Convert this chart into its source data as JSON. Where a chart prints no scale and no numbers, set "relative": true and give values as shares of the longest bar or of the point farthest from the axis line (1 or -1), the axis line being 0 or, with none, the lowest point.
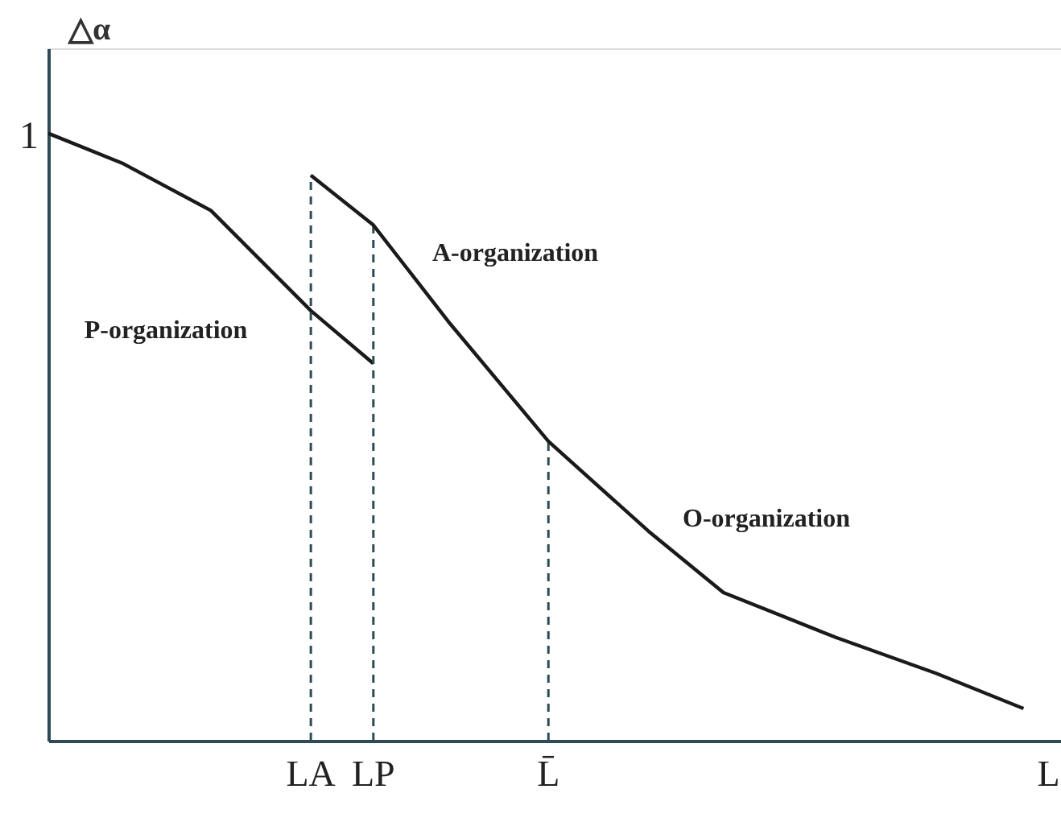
{
  "chart_data": {
    "type": "line",
    "relative": true,
    "ylabel": "△α",
    "grid": false,
    "categories": [
      null,
      null,
      null,
      null,
      null,
      null,
      null,
      null,
      null,
      null,
      null,
      null,
      null,
      null,
      null,
      null,
      null,
      null,
      null,
      null,
      null,
      "LA",
      null,
      null,
      null,
      null,
      "LP",
      null,
      null,
      null,
      null,
      null,
      null,
      null,
      null,
      null,
      null,
      null,
      null,
      null,
      "L̄",
      null,
      null,
      null,
      null,
      null,
      null,
      null,
      null,
      null,
      null,
      null,
      null,
      null,
      null,
      null,
      null,
      null,
      null,
      null,
      null,
      null,
      null,
      null,
      null,
      null,
      null,
      null,
      null,
      null,
      null,
      null,
      null,
      null,
      null,
      null,
      null,
      null,
      null,
      null,
      "L"
    ],
    "series": [
      {
        "color": "#1a1a1a",
        "line_style": "solid",
        "values": [
          1,
          null,
          null,
          null,
          null,
          null,
          0.95,
          null,
          null,
          null,
          null,
          null,
          null,
          0.873,
          null,
          null,
          null,
          null,
          null,
          null,
          null,
          0.708,
          null,
          null,
          null,
          null,
          0.621,
          null,
          null,
          null,
          null,
          null,
          null,
          null,
          null,
          null,
          null,
          null,
          null,
          null,
          null,
          null,
          null,
          null,
          null,
          null,
          null,
          null,
          null,
          null,
          null,
          null,
          null,
          null,
          null,
          null,
          null,
          null,
          null,
          null,
          null,
          null,
          null,
          null,
          null,
          null,
          null,
          null,
          null,
          null,
          null,
          null,
          null,
          null,
          null,
          null,
          null,
          null,
          null,
          null,
          null
        ]
      },
      {
        "color": "#1a1a1a",
        "line_style": "solid",
        "values": [
          null,
          null,
          null,
          null,
          null,
          null,
          null,
          null,
          null,
          null,
          null,
          null,
          null,
          null,
          null,
          null,
          null,
          null,
          null,
          null,
          null,
          0.931,
          null,
          null,
          null,
          null,
          0.849,
          null,
          null,
          null,
          null,
          null,
          0.69,
          null,
          null,
          null,
          null,
          null,
          null,
          null,
          0.493,
          null,
          null,
          null,
          null,
          null,
          null,
          null,
          0.345,
          null,
          null,
          null,
          null,
          null,
          0.244,
          null,
          null,
          null,
          null,
          null,
          null,
          null,
          null,
          0.17,
          null,
          null,
          null,
          null,
          null,
          null,
          null,
          0.111,
          null,
          null,
          null,
          null,
          null,
          null,
          0.053,
          null,
          null
        ]
      }
    ],
    "ref_lines": [
      {
        "axis": "x",
        "value": "LA",
        "color": "#2e4a55",
        "line_style": "dashed"
      },
      {
        "axis": "x",
        "value": "LP",
        "color": "#2e4a55",
        "line_style": "dashed"
      },
      {
        "axis": "x",
        "value": "L̄",
        "color": "#2e4a55",
        "line_style": "dashed"
      }
    ],
    "annotations": [
      "1",
      "P-organization",
      "A-organization",
      "O-organization"
    ]
  }
}
